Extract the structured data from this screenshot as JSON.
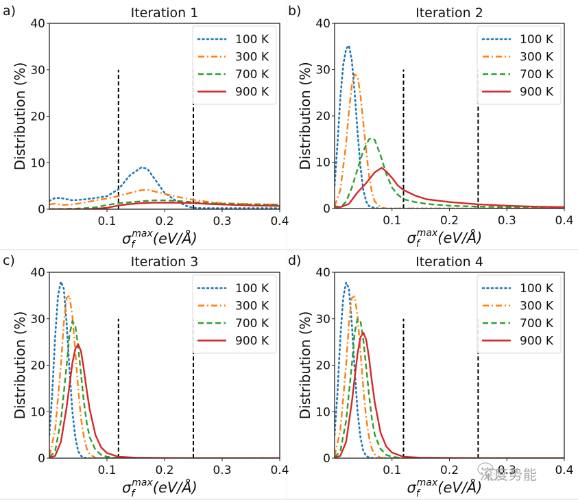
{
  "watermark": "深度势能",
  "chart_data": [
    {
      "panel_label": "a)",
      "type": "line",
      "title": "Iteration 1",
      "xlabel": "σ_f^max(eV/Å)",
      "ylabel": "Distribution (%)",
      "xlim": [
        0,
        0.4
      ],
      "ylim": [
        0,
        40
      ],
      "xticks": [
        "0.1",
        "0.2",
        "0.3",
        "0.4"
      ],
      "yticks": [
        "0",
        "10",
        "20",
        "30",
        "40"
      ],
      "legend_position": "top-right",
      "threshold_lines": [
        {
          "x": 0.12,
          "ymax": 30
        },
        {
          "x": 0.25,
          "ymax": 30
        }
      ],
      "series": [
        {
          "name": "100 K",
          "color": "#1f77b4",
          "style": "dotted",
          "x": [
            0.0,
            0.01,
            0.02,
            0.04,
            0.06,
            0.08,
            0.1,
            0.12,
            0.14,
            0.16,
            0.17,
            0.18,
            0.2,
            0.22,
            0.24,
            0.25,
            0.27,
            0.3,
            0.35,
            0.4
          ],
          "y": [
            1.8,
            2.4,
            2.4,
            1.9,
            2.1,
            2.4,
            2.8,
            4.3,
            7.3,
            9.0,
            8.7,
            7.0,
            3.5,
            1.8,
            0.6,
            0.3,
            0.2,
            0.2,
            0.2,
            0.2
          ]
        },
        {
          "name": "300 K",
          "color": "#ff7f0e",
          "style": "dashdot",
          "x": [
            0.0,
            0.01,
            0.02,
            0.04,
            0.06,
            0.08,
            0.1,
            0.12,
            0.14,
            0.16,
            0.17,
            0.18,
            0.2,
            0.22,
            0.25,
            0.28,
            0.3,
            0.35,
            0.4
          ],
          "y": [
            1.0,
            1.2,
            0.9,
            1.0,
            1.4,
            1.9,
            2.3,
            2.8,
            3.5,
            4.1,
            4.2,
            3.9,
            3.3,
            2.7,
            2.0,
            1.5,
            1.3,
            1.1,
            1.0
          ]
        },
        {
          "name": "700 K",
          "color": "#2ca02c",
          "style": "dashed",
          "x": [
            0.0,
            0.04,
            0.06,
            0.08,
            0.1,
            0.12,
            0.14,
            0.16,
            0.18,
            0.2,
            0.22,
            0.25,
            0.28,
            0.3,
            0.35,
            0.4
          ],
          "y": [
            0.0,
            0.1,
            0.2,
            0.4,
            0.9,
            1.3,
            1.5,
            1.7,
            1.9,
            1.9,
            1.8,
            1.5,
            1.3,
            1.2,
            1.0,
            1.0
          ]
        },
        {
          "name": "900 K",
          "color": "#d62728",
          "style": "solid",
          "x": [
            0.0,
            0.06,
            0.08,
            0.1,
            0.12,
            0.14,
            0.16,
            0.18,
            0.2,
            0.22,
            0.25,
            0.28,
            0.3,
            0.35,
            0.4
          ],
          "y": [
            0.0,
            0.0,
            0.1,
            0.3,
            0.8,
            1.1,
            1.3,
            1.4,
            1.4,
            1.4,
            1.3,
            1.1,
            1.0,
            0.8,
            0.7
          ]
        }
      ]
    },
    {
      "panel_label": "b)",
      "type": "line",
      "title": "Iteration 2",
      "xlabel": "σ_f^max(eV/Å)",
      "ylabel": "Distribution (%)",
      "xlim": [
        0,
        0.4
      ],
      "ylim": [
        0,
        40
      ],
      "xticks": [
        "0.1",
        "0.2",
        "0.3",
        "0.4"
      ],
      "yticks": [
        "0",
        "10",
        "20",
        "30",
        "40"
      ],
      "legend_position": "top-right",
      "threshold_lines": [
        {
          "x": 0.12,
          "ymax": 30
        },
        {
          "x": 0.25,
          "ymax": 30
        }
      ],
      "series": [
        {
          "name": "100 K",
          "color": "#1f77b4",
          "style": "dotted",
          "x": [
            0.0,
            0.005,
            0.01,
            0.015,
            0.02,
            0.025,
            0.03,
            0.035,
            0.04,
            0.045,
            0.05,
            0.055,
            0.06,
            0.07,
            0.08,
            0.1,
            0.4
          ],
          "y": [
            5.0,
            14.0,
            24.0,
            31.0,
            34.5,
            35.2,
            32.0,
            25.0,
            16.5,
            9.0,
            4.0,
            1.5,
            0.5,
            0.1,
            0.0,
            0.0,
            0.0
          ]
        },
        {
          "name": "300 K",
          "color": "#ff7f0e",
          "style": "dashdot",
          "x": [
            0.0,
            0.01,
            0.02,
            0.025,
            0.03,
            0.035,
            0.04,
            0.045,
            0.05,
            0.055,
            0.06,
            0.065,
            0.07,
            0.08,
            0.09,
            0.1,
            0.4
          ],
          "y": [
            0.5,
            4.0,
            14.0,
            21.0,
            26.5,
            29.0,
            28.5,
            24.5,
            18.5,
            12.5,
            7.0,
            3.5,
            1.5,
            0.3,
            0.0,
            0.0,
            0.0
          ]
        },
        {
          "name": "700 K",
          "color": "#2ca02c",
          "style": "dashed",
          "x": [
            0.0,
            0.01,
            0.02,
            0.03,
            0.04,
            0.05,
            0.06,
            0.065,
            0.07,
            0.08,
            0.09,
            0.1,
            0.11,
            0.12,
            0.14,
            0.16,
            0.2,
            0.25,
            0.3,
            0.4
          ],
          "y": [
            0.3,
            0.2,
            1.5,
            4.5,
            8.5,
            12.5,
            15.0,
            15.2,
            14.8,
            11.5,
            7.5,
            4.5,
            3.0,
            2.0,
            1.4,
            1.0,
            0.6,
            0.4,
            0.3,
            0.2
          ]
        },
        {
          "name": "900 K",
          "color": "#d62728",
          "style": "solid",
          "x": [
            0.0,
            0.01,
            0.025,
            0.04,
            0.055,
            0.07,
            0.082,
            0.09,
            0.1,
            0.11,
            0.12,
            0.14,
            0.16,
            0.2,
            0.25,
            0.3,
            0.35,
            0.4
          ],
          "y": [
            0.5,
            0.3,
            1.0,
            3.5,
            5.5,
            7.8,
            8.8,
            8.0,
            6.6,
            5.0,
            4.0,
            2.8,
            2.0,
            1.4,
            0.9,
            0.6,
            0.4,
            0.3
          ]
        }
      ]
    },
    {
      "panel_label": "c)",
      "type": "line",
      "title": "Iteration 3",
      "xlabel": "σ_f^max(eV/Å)",
      "ylabel": "Distribution (%)",
      "xlim": [
        0,
        0.4
      ],
      "ylim": [
        0,
        40
      ],
      "xticks": [
        "0.1",
        "0.2",
        "0.3",
        "0.4"
      ],
      "yticks": [
        "0",
        "10",
        "20",
        "30",
        "40"
      ],
      "legend_position": "top-right",
      "threshold_lines": [
        {
          "x": 0.12,
          "ymax": 30
        },
        {
          "x": 0.25,
          "ymax": 30
        }
      ],
      "series": [
        {
          "name": "100 K",
          "color": "#1f77b4",
          "style": "dotted",
          "x": [
            0.0,
            0.005,
            0.01,
            0.015,
            0.02,
            0.025,
            0.03,
            0.035,
            0.04,
            0.045,
            0.05,
            0.055,
            0.06,
            0.07,
            0.4
          ],
          "y": [
            5.0,
            14.0,
            26.0,
            35.0,
            38.0,
            36.5,
            29.0,
            19.0,
            10.0,
            4.5,
            1.5,
            0.5,
            0.1,
            0.0,
            0.0
          ]
        },
        {
          "name": "300 K",
          "color": "#ff7f0e",
          "style": "dashdot",
          "x": [
            0.0,
            0.01,
            0.02,
            0.025,
            0.03,
            0.035,
            0.04,
            0.045,
            0.05,
            0.055,
            0.06,
            0.065,
            0.07,
            0.08,
            0.09,
            0.4
          ],
          "y": [
            0.5,
            6.0,
            20.0,
            29.0,
            34.5,
            35.0,
            30.5,
            23.0,
            15.0,
            8.5,
            4.5,
            2.0,
            0.8,
            0.1,
            0.0,
            0.0
          ]
        },
        {
          "name": "700 K",
          "color": "#2ca02c",
          "style": "dashed",
          "x": [
            0.0,
            0.01,
            0.02,
            0.03,
            0.035,
            0.04,
            0.045,
            0.05,
            0.055,
            0.06,
            0.065,
            0.07,
            0.08,
            0.09,
            0.1,
            0.12,
            0.4
          ],
          "y": [
            0.2,
            1.5,
            8.0,
            20.0,
            26.5,
            29.5,
            28.5,
            24.0,
            18.0,
            12.0,
            7.5,
            4.5,
            1.8,
            0.7,
            0.3,
            0.0,
            0.0
          ]
        },
        {
          "name": "900 K",
          "color": "#d62728",
          "style": "solid",
          "x": [
            0.0,
            0.01,
            0.02,
            0.03,
            0.04,
            0.045,
            0.05,
            0.055,
            0.06,
            0.065,
            0.07,
            0.08,
            0.09,
            0.1,
            0.12,
            0.15,
            0.25,
            0.4
          ],
          "y": [
            0.1,
            0.5,
            3.5,
            11.0,
            20.5,
            23.5,
            24.5,
            23.0,
            19.0,
            14.5,
            10.5,
            5.0,
            2.3,
            1.1,
            0.3,
            0.1,
            0.0,
            0.0
          ]
        }
      ]
    },
    {
      "panel_label": "d)",
      "type": "line",
      "title": "Iteration 4",
      "xlabel": "σ_f^max(eV/Å)",
      "ylabel": "Distribution (%)",
      "xlim": [
        0,
        0.4
      ],
      "ylim": [
        0,
        40
      ],
      "xticks": [
        "0.1",
        "0.2",
        "0.3",
        "0.4"
      ],
      "yticks": [
        "0",
        "10",
        "20",
        "30",
        "40"
      ],
      "legend_position": "top-right",
      "threshold_lines": [
        {
          "x": 0.12,
          "ymax": 30
        },
        {
          "x": 0.25,
          "ymax": 30
        }
      ],
      "series": [
        {
          "name": "100 K",
          "color": "#1f77b4",
          "style": "dotted",
          "x": [
            0.0,
            0.005,
            0.01,
            0.015,
            0.02,
            0.025,
            0.03,
            0.035,
            0.04,
            0.045,
            0.05,
            0.055,
            0.06,
            0.07,
            0.4
          ],
          "y": [
            5.0,
            14.0,
            26.0,
            34.5,
            37.8,
            36.5,
            29.0,
            19.0,
            10.0,
            4.5,
            1.5,
            0.5,
            0.1,
            0.0,
            0.0
          ]
        },
        {
          "name": "300 K",
          "color": "#ff7f0e",
          "style": "dashdot",
          "x": [
            0.0,
            0.01,
            0.02,
            0.025,
            0.03,
            0.035,
            0.04,
            0.045,
            0.05,
            0.055,
            0.06,
            0.065,
            0.07,
            0.08,
            0.09,
            0.4
          ],
          "y": [
            0.5,
            6.0,
            20.0,
            29.0,
            34.5,
            34.8,
            30.5,
            23.0,
            15.0,
            8.5,
            4.5,
            2.0,
            0.8,
            0.1,
            0.0,
            0.0
          ]
        },
        {
          "name": "700 K",
          "color": "#2ca02c",
          "style": "dashed",
          "x": [
            0.0,
            0.01,
            0.02,
            0.03,
            0.035,
            0.04,
            0.045,
            0.05,
            0.055,
            0.06,
            0.065,
            0.07,
            0.08,
            0.09,
            0.1,
            0.12,
            0.4
          ],
          "y": [
            0.2,
            1.5,
            8.0,
            20.0,
            27.0,
            30.0,
            29.5,
            25.5,
            19.5,
            13.5,
            8.5,
            5.0,
            2.0,
            0.7,
            0.3,
            0.0,
            0.0
          ]
        },
        {
          "name": "900 K",
          "color": "#d62728",
          "style": "solid",
          "x": [
            0.0,
            0.01,
            0.02,
            0.03,
            0.04,
            0.045,
            0.05,
            0.055,
            0.06,
            0.065,
            0.07,
            0.08,
            0.09,
            0.1,
            0.12,
            0.15,
            0.25,
            0.4
          ],
          "y": [
            0.1,
            0.5,
            3.5,
            12.0,
            22.5,
            26.0,
            27.0,
            25.5,
            21.5,
            16.5,
            12.0,
            5.5,
            2.5,
            1.2,
            0.3,
            0.1,
            0.0,
            0.0
          ]
        }
      ]
    }
  ]
}
